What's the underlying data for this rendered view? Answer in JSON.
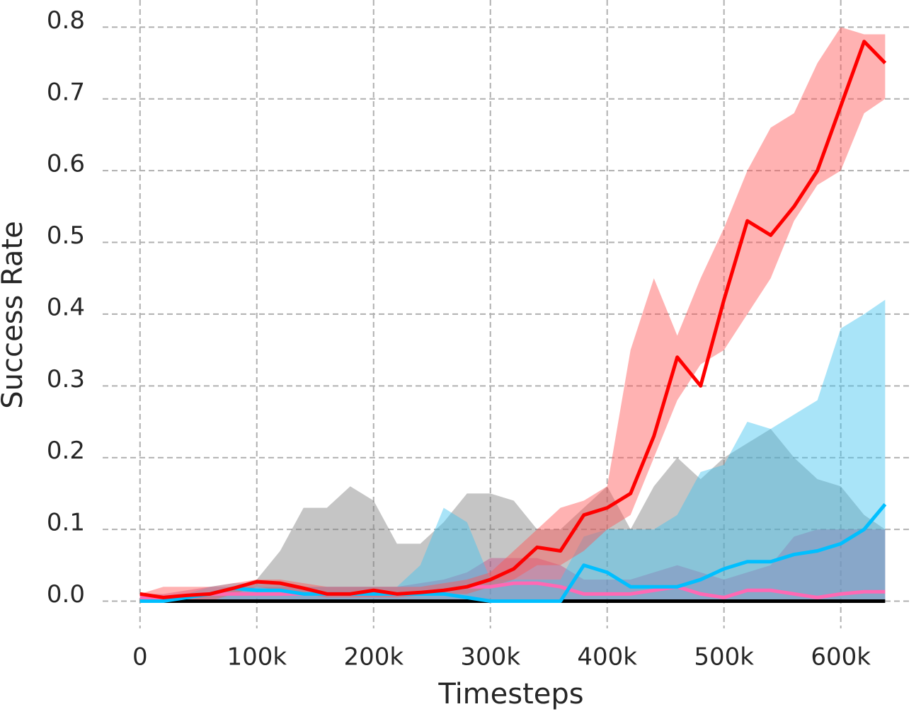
{
  "chart_data": {
    "type": "line",
    "xlabel": "Timesteps",
    "ylabel": "Success Rate",
    "xlim": [
      -32000,
      659000
    ],
    "ylim": [
      -0.038,
      0.828
    ],
    "xticks": [
      0,
      {
        "value": 100000,
        "label": "100k"
      },
      {
        "value": 200000,
        "label": "200k"
      },
      {
        "value": 300000,
        "label": "300k"
      },
      {
        "value": 400000,
        "label": "400k"
      },
      {
        "value": 500000,
        "label": "500k"
      },
      {
        "value": 600000,
        "label": "600k"
      }
    ],
    "yticks": [
      {
        "value": 0,
        "label": "0.0"
      },
      0.1,
      0.2,
      0.3,
      0.4,
      0.5,
      0.6,
      0.7,
      0.8
    ],
    "grid": true,
    "x": [
      0,
      20000,
      40000,
      60000,
      80000,
      100000,
      120000,
      140000,
      160000,
      180000,
      200000,
      220000,
      240000,
      260000,
      280000,
      300000,
      320000,
      340000,
      360000,
      380000,
      400000,
      420000,
      440000,
      460000,
      480000,
      500000,
      520000,
      540000,
      560000,
      580000,
      600000,
      620000,
      638000
    ],
    "series": [
      {
        "color": "#000000",
        "band_color": "#7f7f7f",
        "values": [
          0,
          0,
          0,
          0,
          0,
          0,
          0,
          0,
          0,
          0,
          0,
          0,
          0,
          0,
          0,
          0,
          0,
          0,
          0,
          0,
          0,
          0,
          0,
          0,
          0,
          0,
          0,
          0,
          0,
          0,
          0,
          0,
          0
        ],
        "upper": [
          0,
          0,
          0,
          0.01,
          0.02,
          0.03,
          0.07,
          0.13,
          0.13,
          0.16,
          0.14,
          0.08,
          0.08,
          0.11,
          0.15,
          0.15,
          0.14,
          0.1,
          0.1,
          0.13,
          0.16,
          0.1,
          0.16,
          0.2,
          0.17,
          0.2,
          0.22,
          0.24,
          0.2,
          0.17,
          0.16,
          0.12,
          0.1
        ],
        "lower": [
          0,
          0,
          0,
          0,
          0,
          0,
          0,
          0,
          0,
          0,
          0,
          0,
          0,
          0,
          0,
          0,
          0,
          0,
          0,
          0,
          0,
          0,
          0,
          0,
          0,
          0,
          0,
          0,
          0,
          0,
          0,
          0,
          0
        ]
      },
      {
        "color": "#ff69b4",
        "band_color": "#c04f8a",
        "values": [
          0.005,
          0.005,
          0.008,
          0.01,
          0.01,
          0.01,
          0.01,
          0.01,
          0.01,
          0.01,
          0.01,
          0.01,
          0.012,
          0.015,
          0.02,
          0.02,
          0.025,
          0.025,
          0.02,
          0.01,
          0.01,
          0.01,
          0.015,
          0.02,
          0.01,
          0.005,
          0.015,
          0.015,
          0.01,
          0.005,
          0.01,
          0.013,
          0.013
        ],
        "upper": [
          0.01,
          0.01,
          0.015,
          0.02,
          0.02,
          0.02,
          0.02,
          0.02,
          0.02,
          0.02,
          0.02,
          0.02,
          0.025,
          0.03,
          0.04,
          0.06,
          0.06,
          0.06,
          0.05,
          0.03,
          0.03,
          0.03,
          0.04,
          0.05,
          0.04,
          0.03,
          0.04,
          0.05,
          0.09,
          0.1,
          0.1,
          0.1,
          0.1
        ],
        "lower": [
          0,
          0,
          0,
          0,
          0,
          0,
          0,
          0,
          0,
          0,
          0,
          0,
          0,
          0,
          0,
          0,
          0,
          0,
          0,
          0,
          0,
          0,
          0,
          0,
          0,
          0,
          0,
          0,
          0,
          0,
          0,
          0,
          0
        ]
      },
      {
        "color": "#00bfff",
        "band_color": "#40c4f0",
        "values": [
          0,
          0,
          0.005,
          0.01,
          0.018,
          0.015,
          0.015,
          0.01,
          0.01,
          0.01,
          0.01,
          0.01,
          0.01,
          0.01,
          0.005,
          0,
          0,
          0,
          0,
          0.05,
          0.04,
          0.02,
          0.02,
          0.02,
          0.03,
          0.045,
          0.055,
          0.055,
          0.065,
          0.07,
          0.08,
          0.1,
          0.135
        ],
        "upper": [
          0,
          0,
          0.01,
          0.02,
          0.025,
          0.025,
          0.025,
          0.02,
          0.02,
          0.02,
          0.02,
          0.02,
          0.05,
          0.13,
          0.11,
          0.03,
          0.03,
          0.03,
          0.03,
          0.09,
          0.1,
          0.1,
          0.1,
          0.12,
          0.18,
          0.19,
          0.25,
          0.24,
          0.26,
          0.28,
          0.38,
          0.4,
          0.42
        ],
        "lower": [
          0,
          0,
          0,
          0,
          0,
          0,
          0,
          0,
          0,
          0,
          0,
          0,
          0,
          0,
          0,
          0,
          0,
          0,
          0,
          0,
          0,
          0,
          0,
          0,
          0,
          0,
          0,
          0,
          0,
          0,
          0,
          0,
          0
        ]
      },
      {
        "color": "#ff0000",
        "band_color": "#ff5555",
        "values": [
          0.01,
          0.005,
          0.008,
          0.01,
          0.018,
          0.027,
          0.025,
          0.018,
          0.01,
          0.01,
          0.015,
          0.01,
          0.012,
          0.015,
          0.02,
          0.03,
          0.045,
          0.075,
          0.07,
          0.12,
          0.13,
          0.15,
          0.23,
          0.34,
          0.3,
          0.42,
          0.53,
          0.51,
          0.55,
          0.6,
          0.69,
          0.78,
          0.75
        ],
        "upper": [
          0.01,
          0.02,
          0.02,
          0.02,
          0.025,
          0.03,
          0.03,
          0.025,
          0.02,
          0.02,
          0.02,
          0.02,
          0.02,
          0.025,
          0.03,
          0.04,
          0.07,
          0.1,
          0.13,
          0.14,
          0.16,
          0.35,
          0.45,
          0.37,
          0.45,
          0.52,
          0.6,
          0.66,
          0.68,
          0.75,
          0.8,
          0.79,
          0.79
        ],
        "lower": [
          0.005,
          0,
          0,
          0,
          0.01,
          0.02,
          0.015,
          0.01,
          0.005,
          0.005,
          0.005,
          0.005,
          0.008,
          0.01,
          0.01,
          0.02,
          0.03,
          0.05,
          0.05,
          0.07,
          0.1,
          0.12,
          0.2,
          0.28,
          0.33,
          0.35,
          0.4,
          0.45,
          0.53,
          0.58,
          0.6,
          0.68,
          0.7
        ]
      }
    ]
  }
}
